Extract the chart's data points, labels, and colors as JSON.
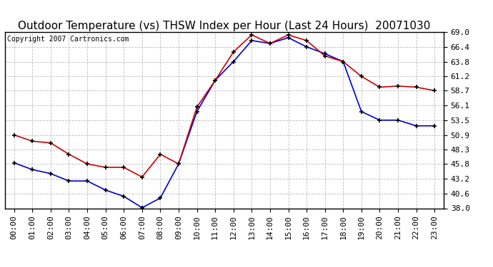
{
  "title": "Outdoor Temperature (vs) THSW Index per Hour (Last 24 Hours)  20071030",
  "copyright": "Copyright 2007 Cartronics.com",
  "x_labels": [
    "00:00",
    "01:00",
    "02:00",
    "03:00",
    "04:00",
    "05:00",
    "06:00",
    "07:00",
    "08:00",
    "09:00",
    "10:00",
    "11:00",
    "12:00",
    "13:00",
    "14:00",
    "15:00",
    "16:00",
    "17:00",
    "18:00",
    "19:00",
    "20:00",
    "21:00",
    "22:00",
    "23:00"
  ],
  "temp_data": [
    46.0,
    44.8,
    44.1,
    42.8,
    42.8,
    41.2,
    40.1,
    38.1,
    39.8,
    45.8,
    55.0,
    60.5,
    63.8,
    67.5,
    67.0,
    68.0,
    66.4,
    65.2,
    63.8,
    55.0,
    53.5,
    53.5,
    52.5,
    52.5
  ],
  "thsw_data": [
    50.9,
    49.8,
    49.5,
    47.5,
    45.8,
    45.2,
    45.2,
    43.5,
    47.5,
    45.8,
    55.8,
    60.5,
    65.5,
    68.5,
    67.0,
    68.5,
    67.5,
    64.8,
    63.8,
    61.2,
    59.3,
    59.5,
    59.3,
    58.7
  ],
  "y_ticks": [
    38.0,
    40.6,
    43.2,
    45.8,
    48.3,
    50.9,
    53.5,
    56.1,
    58.7,
    61.2,
    63.8,
    66.4,
    69.0
  ],
  "y_min": 38.0,
  "y_max": 69.0,
  "temp_color": "#0000cc",
  "thsw_color": "#cc0000",
  "bg_color": "#ffffff",
  "grid_color": "#bbbbbb",
  "title_fontsize": 11,
  "copyright_fontsize": 7,
  "tick_fontsize": 8
}
